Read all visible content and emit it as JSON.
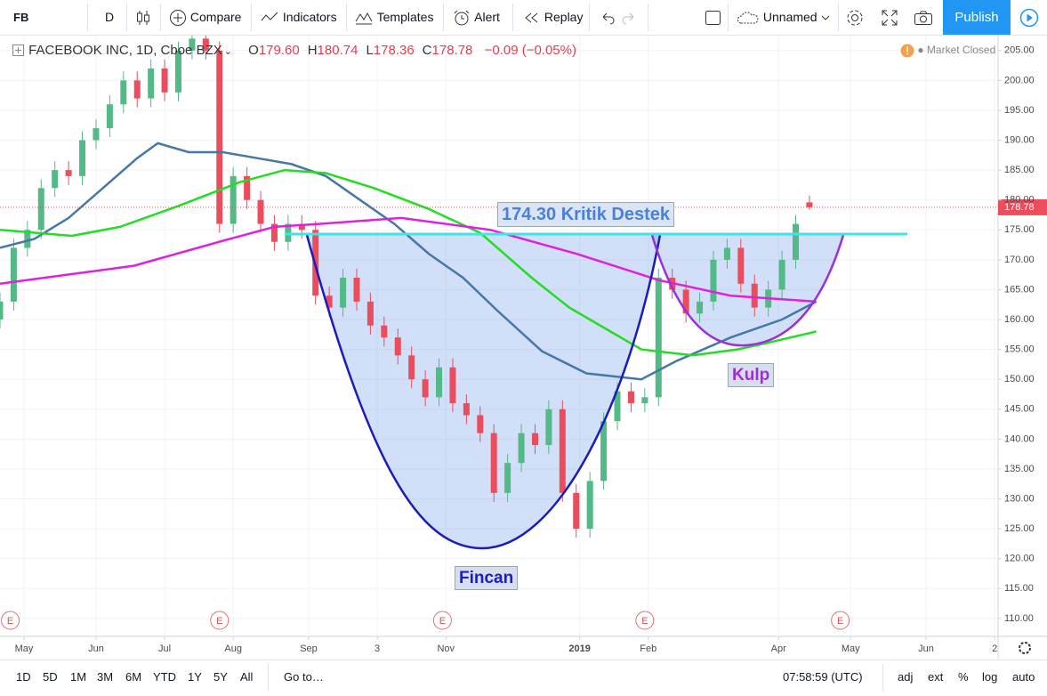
{
  "toolbar": {
    "symbol": "FB",
    "interval": "D",
    "compare": "Compare",
    "indicators": "Indicators",
    "templates": "Templates",
    "alert": "Alert",
    "replay": "Replay",
    "layout_name": "Unnamed",
    "publish": "Publish"
  },
  "legend": {
    "symbol": "FACEBOOK INC, 1D, Cboe BZX",
    "ohlc": [
      {
        "key": "O",
        "value": "179.60"
      },
      {
        "key": "H",
        "value": "180.74"
      },
      {
        "key": "L",
        "value": "178.36"
      },
      {
        "key": "C",
        "value": "178.78"
      }
    ],
    "change": "−0.09 (−0.05%)",
    "status": "Market Closed"
  },
  "bottom_bar": {
    "ranges": [
      "1D",
      "5D",
      "1M",
      "3M",
      "6M",
      "YTD",
      "1Y",
      "5Y",
      "All"
    ],
    "goto": "Go to…",
    "time": "07:58:59 (UTC)",
    "options": [
      "adj",
      "ext",
      "%",
      "log",
      "auto"
    ]
  },
  "chart_data": {
    "type": "candlestick",
    "xlim": [
      0,
      291
    ],
    "ylim": [
      107,
      207.5
    ],
    "xticks": [
      {
        "value": 7,
        "label": "May"
      },
      {
        "value": 28,
        "label": "Jun"
      },
      {
        "value": 48,
        "label": "Jul"
      },
      {
        "value": 68,
        "label": "Aug"
      },
      {
        "value": 90,
        "label": "Sep"
      },
      {
        "value": 110,
        "label": "3"
      },
      {
        "value": 130,
        "label": "Nov"
      },
      {
        "value": 169,
        "label": "2019"
      },
      {
        "value": 189,
        "label": "Feb"
      },
      {
        "value": 227,
        "label": "Apr"
      },
      {
        "value": 248,
        "label": "May"
      },
      {
        "value": 270,
        "label": "Jun"
      },
      {
        "value": 290,
        "label": "2"
      }
    ],
    "yticks": [
      {
        "value": 110,
        "label": "110.00"
      },
      {
        "value": 115,
        "label": "115.00"
      },
      {
        "value": 120,
        "label": "120.00"
      },
      {
        "value": 125,
        "label": "125.00"
      },
      {
        "value": 130,
        "label": "130.00"
      },
      {
        "value": 135,
        "label": "135.00"
      },
      {
        "value": 140,
        "label": "140.00"
      },
      {
        "value": 145,
        "label": "145.00"
      },
      {
        "value": 150,
        "label": "150.00"
      },
      {
        "value": 155,
        "label": "155.00"
      },
      {
        "value": 160,
        "label": "160.00"
      },
      {
        "value": 165,
        "label": "165.00"
      },
      {
        "value": 170,
        "label": "170.00"
      },
      {
        "value": 175,
        "label": "175.00"
      },
      {
        "value": 180,
        "label": "180.00"
      },
      {
        "value": 185,
        "label": "185.00"
      },
      {
        "value": 190,
        "label": "190.00"
      },
      {
        "value": 195,
        "label": "195.00"
      },
      {
        "value": 200,
        "label": "200.00"
      },
      {
        "value": 205,
        "label": "205.00"
      }
    ],
    "grid": true,
    "up_color": "#53b987",
    "down_color": "#eb4d5c",
    "x": [
      0,
      4,
      8,
      12,
      16,
      20,
      24,
      28,
      32,
      36,
      40,
      44,
      48,
      52,
      56,
      60,
      64,
      68,
      72,
      76,
      80,
      84,
      88,
      92,
      96,
      100,
      104,
      108,
      112,
      116,
      120,
      124,
      128,
      132,
      136,
      140,
      144,
      148,
      152,
      156,
      160,
      164,
      168,
      172,
      176,
      180,
      184,
      188,
      192,
      196,
      200,
      204,
      208,
      212,
      216,
      220,
      224,
      228,
      232,
      236
    ],
    "open": [
      160,
      163,
      172,
      175,
      182,
      185,
      184,
      190,
      192,
      196,
      200,
      197,
      202,
      198,
      205,
      207,
      205,
      176,
      184,
      180,
      176,
      173,
      176,
      175,
      164,
      162,
      167,
      163,
      159,
      157,
      154,
      150,
      147,
      152,
      146,
      144,
      141,
      131,
      136,
      141,
      139,
      145,
      131,
      125,
      133,
      143,
      148,
      146,
      147,
      167,
      165,
      161,
      163,
      170,
      172,
      166,
      162,
      165,
      170,
      179.6
    ],
    "high": [
      164.5,
      173.5,
      176.5,
      183.5,
      186.5,
      186.5,
      191.5,
      193.5,
      197.5,
      201.5,
      201.5,
      203.5,
      203.5,
      206.5,
      208.5,
      208.5,
      206.5,
      185.5,
      185.5,
      181.5,
      177.5,
      177.5,
      177.5,
      176.5,
      165.5,
      168.5,
      168.5,
      164.5,
      160.5,
      158.5,
      155.5,
      151.5,
      153.5,
      153.5,
      147.5,
      145.5,
      142.5,
      137.5,
      142.5,
      142.5,
      146.5,
      146.5,
      132.5,
      134.5,
      144.5,
      149.5,
      149.5,
      148.5,
      168.5,
      168.5,
      166.5,
      164.5,
      171.5,
      173.5,
      173.5,
      167.5,
      166.5,
      171.5,
      177.5,
      180.74
    ],
    "low": [
      158.5,
      161.5,
      170.5,
      173.5,
      180.5,
      182.5,
      182.5,
      188.5,
      190.5,
      194.5,
      195.5,
      195.5,
      196.5,
      196.5,
      203.5,
      203.5,
      174.5,
      174.5,
      178.5,
      174.5,
      171.5,
      171.5,
      173.5,
      162.5,
      160.5,
      160.5,
      161.5,
      157.5,
      155.5,
      152.5,
      148.5,
      145.5,
      145.5,
      144.5,
      142.5,
      139.5,
      129.5,
      129.5,
      134.5,
      137.5,
      137.5,
      129.5,
      123.5,
      123.5,
      131.5,
      141.5,
      144.5,
      144.5,
      145.5,
      163.5,
      159.5,
      159.5,
      161.5,
      168.5,
      164.5,
      160.5,
      160.5,
      163.5,
      168.5,
      178.36
    ],
    "close": [
      163,
      172,
      175,
      182,
      185,
      184,
      190,
      192,
      196,
      200,
      197,
      202,
      198,
      205,
      207,
      205,
      176,
      184,
      180,
      176,
      173,
      176,
      175,
      164,
      162,
      167,
      163,
      159,
      157,
      154,
      150,
      147,
      152,
      146,
      144,
      141,
      131,
      136,
      141,
      139,
      145,
      131,
      125,
      133,
      143,
      148,
      146,
      147,
      167,
      165,
      161,
      163,
      170,
      172,
      166,
      162,
      165,
      170,
      176,
      178.78
    ],
    "moving_averages": [
      {
        "color": "#4677a6",
        "x": [
          0,
          10,
          20,
          30,
          40,
          46,
          55,
          65,
          75,
          85,
          95,
          105,
          115,
          125,
          135,
          145,
          158,
          171,
          187,
          197,
          213,
          228,
          238
        ],
        "values": [
          172,
          173.5,
          177,
          182,
          187,
          189.5,
          188,
          188,
          187,
          186,
          184,
          180,
          176,
          171,
          167,
          161.5,
          154.7,
          151,
          150,
          153,
          157,
          160,
          163
        ]
      },
      {
        "color": "#22dd22",
        "x": [
          0,
          21,
          35,
          52,
          70,
          83,
          95,
          109,
          125,
          140,
          155,
          166,
          178,
          187,
          202,
          215,
          223,
          238
        ],
        "values": [
          175,
          174,
          175.5,
          179,
          183,
          185,
          184.5,
          182,
          178.5,
          174.5,
          167,
          162,
          158,
          155,
          154,
          155,
          156,
          158
        ]
      },
      {
        "color": "#e020e0",
        "x": [
          0,
          39,
          67,
          80,
          93,
          117,
          143,
          168,
          192,
          213,
          238
        ],
        "values": [
          166,
          169,
          173.5,
          175.5,
          176,
          177,
          175,
          171,
          166.6,
          164,
          163
        ]
      }
    ],
    "last_price": 178.78,
    "support": {
      "value": 174.3,
      "label": "174.30 Kritik Destek",
      "color": "#3fe3ea"
    },
    "annotations": {
      "cup": "Fincan",
      "handle": "Kulp"
    },
    "earnings_markers": [
      {
        "x": 3,
        "label": "E"
      },
      {
        "x": 64,
        "label": "E"
      },
      {
        "x": 129,
        "label": "E"
      },
      {
        "x": 188,
        "label": "E"
      },
      {
        "x": 245,
        "label": "E"
      }
    ]
  }
}
